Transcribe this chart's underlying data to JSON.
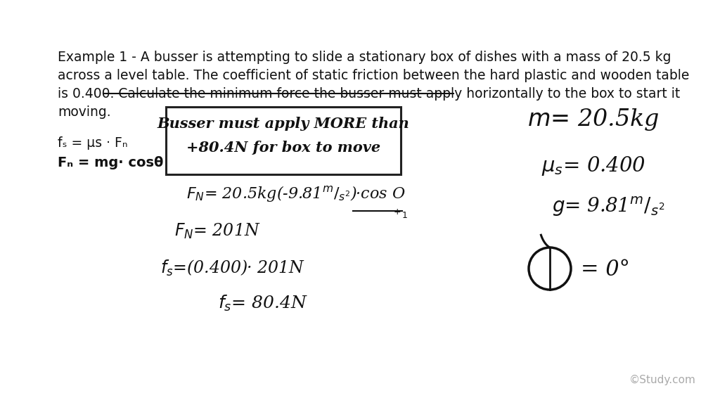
{
  "bg_color": "#ffffff",
  "para_line1": "Example 1 - A busser is attempting to slide a stationary box of dishes with a mass of 20.5 kg",
  "para_line2": "across a level table. The coefficient of static friction between the hard plastic and wooden table",
  "para_line3": "is 0.400. Calculate the minimum force the busser must apply horizontally to the box to start it",
  "para_line4": "moving.",
  "formula1": "fₛ = μs · Fₙ",
  "formula2": "Fₙ = mg· cosθ",
  "box_line1": "Busser must apply MORE than",
  "box_line2": "+80.4N for box to move",
  "fn_full": "Fₙ= 20.5kg(-9.81m/s²)·cosO",
  "fn_short": "Fₙ= 201N",
  "fs_mid": "fₛ=(0.400)· 201N",
  "fs_ans": "fₛ= 80.4N",
  "given_m": "m= 20.5kg",
  "given_us": "μs= 0.400",
  "given_g": "g= 9.81m/s²",
  "given_theta_eq": "= 0°",
  "watermark": "©Study.com",
  "font_color": "#111111",
  "strike_color": "#111111",
  "box_edge_color": "#222222",
  "para_fontsize": 13.5,
  "formula_fontsize": 13.5,
  "eq_fontsize": 16,
  "given_fontsize": 20,
  "watermark_fontsize": 11
}
